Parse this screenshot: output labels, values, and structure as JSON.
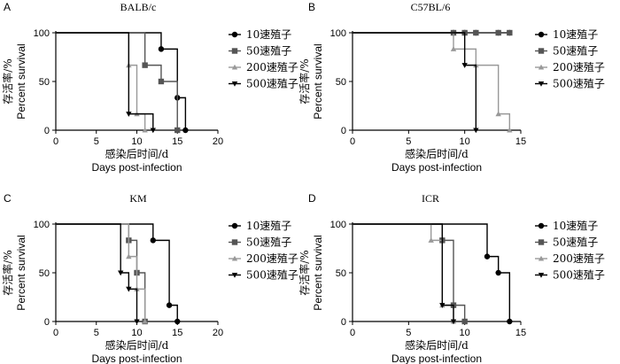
{
  "chart_data": [
    {
      "type": "line",
      "panel": "A",
      "title": "BALB/c",
      "xlabel_cn": "感染后时间/d",
      "xlabel": "Days post-infection",
      "ylabel_cn": "存活率/%",
      "ylabel": "Percent survival",
      "xlim": [
        0,
        20
      ],
      "ylim": [
        0,
        100
      ],
      "xticks": [
        0,
        5,
        10,
        15,
        20
      ],
      "yticks": [
        0,
        50,
        100
      ],
      "grid": false,
      "legend_position": "right",
      "series": [
        {
          "name": "10速殖子",
          "color": "#000000",
          "marker": "circle",
          "steps": [
            [
              0,
              100
            ],
            [
              13,
              83.3
            ],
            [
              15,
              33.3
            ],
            [
              16,
              0
            ]
          ]
        },
        {
          "name": "50速殖子",
          "color": "#555555",
          "marker": "square",
          "steps": [
            [
              0,
              100
            ],
            [
              11,
              66.7
            ],
            [
              13,
              50
            ],
            [
              15,
              0
            ]
          ]
        },
        {
          "name": "200速殖子",
          "color": "#999999",
          "marker": "triangle-up",
          "steps": [
            [
              0,
              100
            ],
            [
              9,
              66.7
            ],
            [
              10,
              16.7
            ],
            [
              11,
              0
            ]
          ]
        },
        {
          "name": "500速殖子",
          "color": "#000000",
          "marker": "triangle-down",
          "steps": [
            [
              0,
              100
            ],
            [
              9,
              16.7
            ],
            [
              12,
              0
            ]
          ]
        }
      ]
    },
    {
      "type": "line",
      "panel": "B",
      "title": "C57BL/6",
      "xlabel_cn": "感染后时间/d",
      "xlabel": "Days post-infection",
      "ylabel_cn": "存活率/%",
      "ylabel": "Percent survival",
      "xlim": [
        0,
        15
      ],
      "ylim": [
        0,
        100
      ],
      "xticks": [
        0,
        5,
        10,
        15
      ],
      "yticks": [
        0,
        50,
        100
      ],
      "grid": false,
      "legend_position": "right",
      "series": [
        {
          "name": "10速殖子",
          "color": "#000000",
          "marker": "circle",
          "steps": [
            [
              0,
              100
            ]
          ],
          "end_x": 14
        },
        {
          "name": "50速殖子",
          "color": "#555555",
          "marker": "square",
          "steps": [
            [
              0,
              100
            ]
          ],
          "end_x": 14
        },
        {
          "name": "200速殖子",
          "color": "#999999",
          "marker": "triangle-up",
          "steps": [
            [
              0,
              100
            ],
            [
              9,
              83.3
            ],
            [
              11,
              66.7
            ],
            [
              13,
              16.7
            ],
            [
              14,
              0
            ]
          ]
        },
        {
          "name": "500速殖子",
          "color": "#000000",
          "marker": "triangle-down",
          "steps": [
            [
              0,
              100
            ],
            [
              10,
              66.7
            ],
            [
              11,
              0
            ]
          ]
        }
      ]
    },
    {
      "type": "line",
      "panel": "C",
      "title": "KM",
      "xlabel_cn": "感染后时间/d",
      "xlabel": "Days post-infection",
      "ylabel_cn": "存活率/%",
      "ylabel": "Percent survival",
      "xlim": [
        0,
        20
      ],
      "ylim": [
        0,
        100
      ],
      "xticks": [
        0,
        5,
        10,
        15,
        20
      ],
      "yticks": [
        0,
        50,
        100
      ],
      "grid": false,
      "legend_position": "right",
      "series": [
        {
          "name": "10速殖子",
          "color": "#000000",
          "marker": "circle",
          "steps": [
            [
              0,
              100
            ],
            [
              12,
              83.3
            ],
            [
              14,
              16.7
            ],
            [
              15,
              0
            ]
          ]
        },
        {
          "name": "50速殖子",
          "color": "#555555",
          "marker": "square",
          "steps": [
            [
              0,
              100
            ],
            [
              9,
              83.3
            ],
            [
              10,
              50
            ],
            [
              11,
              0
            ]
          ]
        },
        {
          "name": "200速殖子",
          "color": "#999999",
          "marker": "triangle-up",
          "steps": [
            [
              0,
              100
            ],
            [
              9,
              66.7
            ],
            [
              10,
              33.3
            ],
            [
              11,
              0
            ]
          ]
        },
        {
          "name": "500速殖子",
          "color": "#000000",
          "marker": "triangle-down",
          "steps": [
            [
              0,
              100
            ],
            [
              8,
              50
            ],
            [
              9,
              33.3
            ],
            [
              10,
              0
            ]
          ]
        }
      ]
    },
    {
      "type": "line",
      "panel": "D",
      "title": "ICR",
      "xlabel_cn": "感染后时间/d",
      "xlabel": "Days post-infection",
      "ylabel_cn": "存活率/%",
      "ylabel": "Percent survival",
      "xlim": [
        0,
        15
      ],
      "ylim": [
        0,
        100
      ],
      "xticks": [
        0,
        5,
        10,
        15
      ],
      "yticks": [
        0,
        50,
        100
      ],
      "grid": false,
      "legend_position": "right",
      "series": [
        {
          "name": "10速殖子",
          "color": "#000000",
          "marker": "circle",
          "steps": [
            [
              0,
              100
            ],
            [
              12,
              66.7
            ],
            [
              13,
              50
            ],
            [
              14,
              0
            ]
          ]
        },
        {
          "name": "50速殖子",
          "color": "#555555",
          "marker": "square",
          "steps": [
            [
              0,
              100
            ],
            [
              8,
              83.3
            ],
            [
              9,
              16.7
            ],
            [
              10,
              0
            ]
          ]
        },
        {
          "name": "200速殖子",
          "color": "#999999",
          "marker": "triangle-up",
          "steps": [
            [
              0,
              100
            ],
            [
              7,
              83.3
            ],
            [
              8,
              16.7
            ],
            [
              9,
              0
            ]
          ]
        },
        {
          "name": "500速殖子",
          "color": "#000000",
          "marker": "triangle-down",
          "steps": [
            [
              0,
              100
            ],
            [
              8,
              16.7
            ],
            [
              9,
              0
            ]
          ]
        }
      ]
    }
  ]
}
